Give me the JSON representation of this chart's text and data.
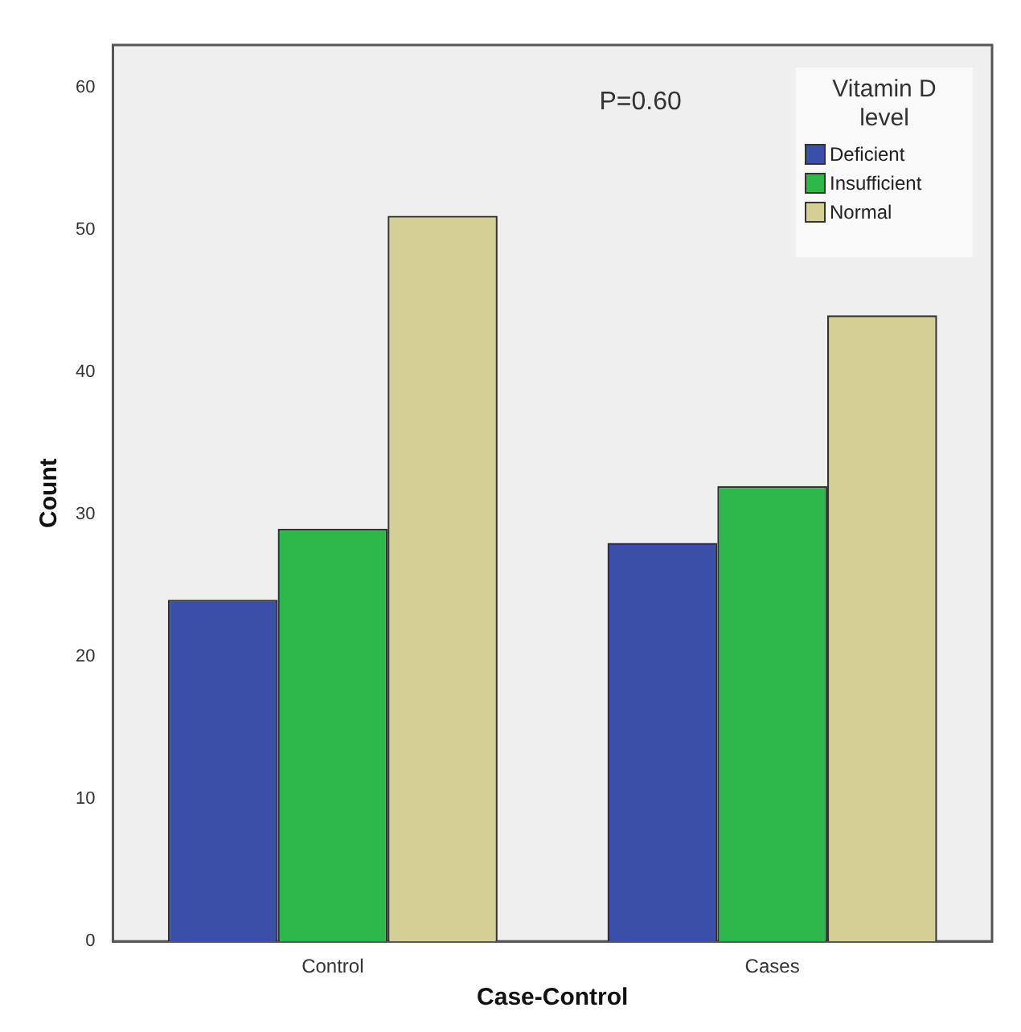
{
  "chart_data": {
    "type": "bar",
    "xlabel": "Case-Control",
    "ylabel": "Count",
    "legend_title": "Vitamin D level",
    "categories": [
      "Control",
      "Cases"
    ],
    "series": [
      {
        "name": "Deficient",
        "color": "#3b4fa8",
        "values": [
          24,
          28
        ]
      },
      {
        "name": "Insufficient",
        "color": "#2fb84a",
        "values": [
          29,
          32
        ]
      },
      {
        "name": "Normal",
        "color": "#d4cf95",
        "values": [
          51,
          44
        ]
      }
    ],
    "ylim": [
      0,
      63
    ],
    "yticks": [
      0,
      10,
      20,
      30,
      40,
      50,
      60
    ],
    "grid": false,
    "legend": "top right",
    "annotations": [
      "P=0.60"
    ]
  }
}
